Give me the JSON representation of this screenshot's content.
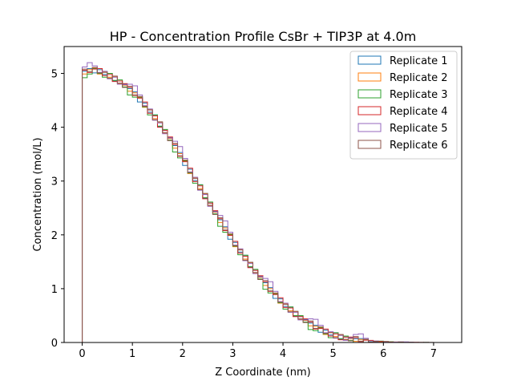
{
  "chart_data": {
    "type": "line",
    "style": "step-histogram",
    "title": "HP - Concentration Profile CsBr + TIP3P at 4.0m",
    "xlabel": "Z Coordinate (nm)",
    "ylabel": "Concentration (mol/L)",
    "xlim": [
      -0.36,
      7.56
    ],
    "ylim": [
      0,
      5.5
    ],
    "xticks": [
      0,
      1,
      2,
      3,
      4,
      5,
      6,
      7
    ],
    "yticks": [
      0,
      1,
      2,
      3,
      4,
      5
    ],
    "grid": false,
    "legend_position": "top-right",
    "x": [
      0.0,
      0.1,
      0.2,
      0.3,
      0.4,
      0.5,
      0.6,
      0.7,
      0.8,
      0.9,
      1.0,
      1.1,
      1.2,
      1.3,
      1.4,
      1.5,
      1.6,
      1.7,
      1.8,
      1.9,
      2.0,
      2.1,
      2.2,
      2.3,
      2.4,
      2.5,
      2.6,
      2.7,
      2.8,
      2.9,
      3.0,
      3.1,
      3.2,
      3.3,
      3.4,
      3.5,
      3.6,
      3.7,
      3.8,
      3.9,
      4.0,
      4.1,
      4.2,
      4.3,
      4.4,
      4.5,
      4.6,
      4.7,
      4.8,
      4.9,
      5.0,
      5.1,
      5.2,
      5.3,
      5.4,
      5.5,
      5.6,
      5.7,
      5.8,
      5.9,
      6.0,
      6.1,
      6.2,
      6.3,
      6.4,
      6.5,
      6.6,
      6.7,
      6.8,
      6.9,
      7.0,
      7.1,
      7.2
    ],
    "base_values": [
      5.02,
      5.05,
      5.06,
      5.04,
      5.0,
      4.95,
      4.9,
      4.84,
      4.77,
      4.7,
      4.62,
      4.52,
      4.42,
      4.3,
      4.18,
      4.05,
      3.92,
      3.78,
      3.64,
      3.49,
      3.34,
      3.19,
      3.03,
      2.88,
      2.72,
      2.57,
      2.41,
      2.26,
      2.11,
      1.97,
      1.83,
      1.7,
      1.57,
      1.44,
      1.32,
      1.2,
      1.09,
      0.98,
      0.87,
      0.78,
      0.69,
      0.61,
      0.53,
      0.46,
      0.4,
      0.34,
      0.28,
      0.24,
      0.2,
      0.16,
      0.13,
      0.1,
      0.08,
      0.06,
      0.05,
      0.04,
      0.03,
      0.02,
      0.016,
      0.012,
      0.009,
      0.007,
      0.005,
      0.004,
      0.003,
      0.002,
      0.0015,
      0.001,
      0.0008,
      0.0005,
      0.0003,
      0.0002,
      0.0
    ],
    "series": [
      {
        "name": "Replicate 1",
        "color": "#1f77b4",
        "offsets": [
          0.02,
          0.04,
          -0.05,
          0.03,
          -0.02,
          0.05,
          -0.04,
          0.02,
          0.03
        ]
      },
      {
        "name": "Replicate 2",
        "color": "#ff7f0e",
        "offsets": [
          -0.03,
          0.02,
          0.04,
          -0.05,
          0.03,
          -0.02,
          0.04,
          -0.03,
          0.01
        ]
      },
      {
        "name": "Replicate 3",
        "color": "#2ca02c",
        "offsets": [
          -0.1,
          -0.06,
          0.03,
          -0.04,
          -0.07,
          0.05,
          -0.03,
          0.04,
          -0.02
        ]
      },
      {
        "name": "Replicate 4",
        "color": "#d62728",
        "offsets": [
          0.04,
          -0.03,
          0.02,
          0.05,
          -0.04,
          0.03,
          -0.05,
          0.02,
          0.04
        ]
      },
      {
        "name": "Replicate 5",
        "color": "#9467bd",
        "offsets": [
          0.1,
          0.15,
          0.08,
          -0.02,
          0.04,
          -0.05,
          0.03,
          -0.04,
          0.02
        ]
      },
      {
        "name": "Replicate 6",
        "color": "#8c564b",
        "offsets": [
          0.06,
          -0.02,
          0.05,
          -0.03,
          0.02,
          -0.04,
          0.05,
          -0.02,
          -0.03
        ]
      }
    ]
  }
}
